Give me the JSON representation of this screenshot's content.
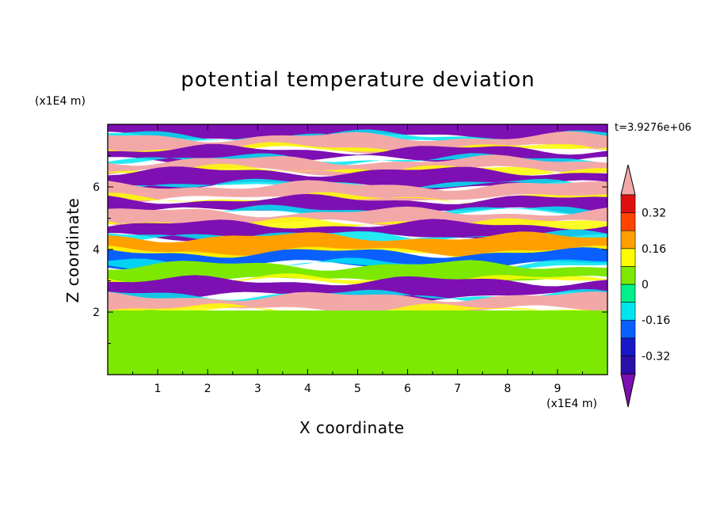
{
  "title": "potential temperature deviation",
  "time_label": "t=3.9276e+06",
  "x_unit": "(x1E4 m)",
  "y_unit": "(x1E4 m)",
  "chart_data": {
    "type": "heatmap",
    "title": "potential temperature deviation",
    "xlabel": "X coordinate",
    "ylabel": "Z coordinate",
    "x_unit": "(x1E4 m)",
    "y_unit": "(x1E4 m)",
    "xlim": [
      0,
      10
    ],
    "ylim": [
      0,
      8
    ],
    "xticks": [
      1,
      2,
      3,
      4,
      5,
      6,
      7,
      8,
      9
    ],
    "yticks": [
      2,
      4,
      6
    ],
    "colorbar": {
      "levels": [
        -0.4,
        -0.32,
        -0.24,
        -0.16,
        -0.08,
        0,
        0.08,
        0.16,
        0.24,
        0.32,
        0.4
      ],
      "tick_labels": [
        "0.32",
        "0.16",
        "0",
        "-0.16",
        "-0.32"
      ],
      "tick_values": [
        0.32,
        0.16,
        0,
        -0.16,
        -0.32
      ],
      "colors": [
        "#7e0fb3",
        "#2a0faa",
        "#1818c8",
        "#0a60ff",
        "#00e6f0",
        "#00f08a",
        "#7de800",
        "#fdfd00",
        "#ffa000",
        "#ff4400",
        "#e01010",
        "#f3a8a8"
      ],
      "extend": "both"
    },
    "layers": [
      {
        "z": [
          7.6,
          7.9
        ],
        "value": -0.44
      },
      {
        "z": [
          7.2,
          7.6
        ],
        "value": 0.44
      },
      {
        "z": [
          6.85,
          7.2
        ],
        "value": -0.44
      },
      {
        "z": [
          6.5,
          6.85
        ],
        "value": 0.44
      },
      {
        "z": [
          6.05,
          6.5
        ],
        "value": -0.44
      },
      {
        "z": [
          5.6,
          6.05
        ],
        "value": 0.44
      },
      {
        "z": [
          5.2,
          5.6
        ],
        "value": -0.44
      },
      {
        "z": [
          4.8,
          5.2
        ],
        "value": 0.44
      },
      {
        "z": [
          4.4,
          4.8
        ],
        "value": -0.44
      },
      {
        "z": [
          3.9,
          4.4
        ],
        "value": 0.2
      },
      {
        "z": [
          3.5,
          3.9
        ],
        "value": -0.2
      },
      {
        "z": [
          3.0,
          3.5
        ],
        "value": 0.05
      },
      {
        "z": [
          2.5,
          3.0
        ],
        "value": -0.44
      },
      {
        "z": [
          2.05,
          2.5
        ],
        "value": 0.44
      },
      {
        "z": [
          0,
          2.05
        ],
        "value": 0.0
      }
    ],
    "time": "t=3.9276e+06"
  }
}
